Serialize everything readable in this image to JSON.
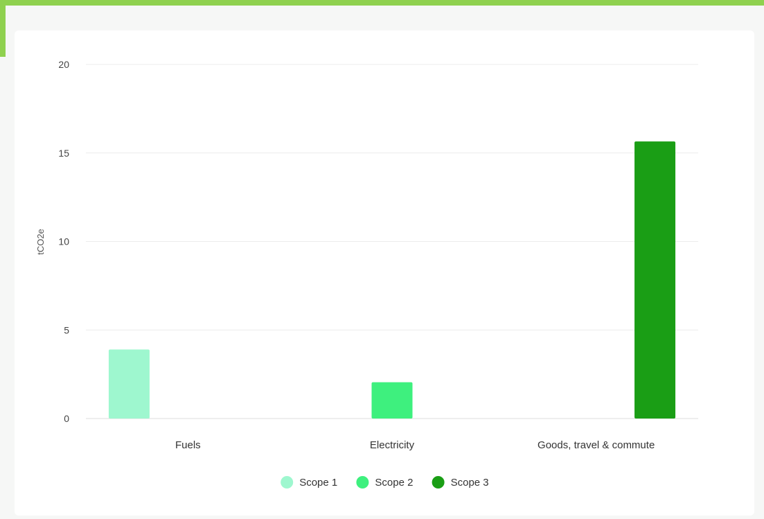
{
  "theme": {
    "top_bar_color": "#8fd14f",
    "left_accent_color": "#8fd14f",
    "card_bg": "#ffffff"
  },
  "chart_data": {
    "type": "bar",
    "categories": [
      "Fuels",
      "Electricity",
      "Goods, travel & commute"
    ],
    "series": [
      {
        "name": "Scope 1",
        "color": "#9ef7cf",
        "values": [
          3.9,
          null,
          null
        ]
      },
      {
        "name": "Scope 2",
        "color": "#3ef07e",
        "values": [
          null,
          2.05,
          null
        ]
      },
      {
        "name": "Scope 3",
        "color": "#1a9e15",
        "values": [
          null,
          null,
          15.65
        ]
      }
    ],
    "ylabel": "tCO2e",
    "ylim": [
      0,
      20
    ],
    "yticks": [
      0,
      5,
      10,
      15,
      20
    ],
    "grid": true,
    "legend": "bottom"
  }
}
